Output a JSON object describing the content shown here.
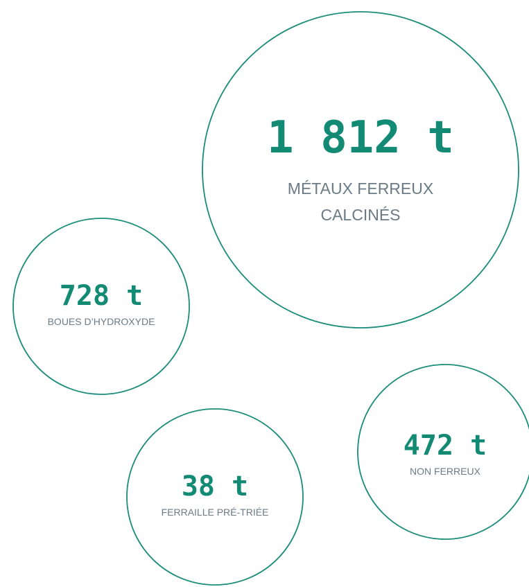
{
  "bubbles": [
    {
      "value": "1 812 t",
      "label": [
        "MÉTAUX FERREUX",
        "CALCINÉS"
      ]
    },
    {
      "value": "728 t",
      "label": [
        "BOUES D’HYDROXYDE"
      ]
    },
    {
      "value": "38 t",
      "label": [
        "FERRAILLE PRÉ-TRIÉE"
      ]
    },
    {
      "value": "472 t",
      "label": [
        "NON FERREUX"
      ]
    }
  ]
}
